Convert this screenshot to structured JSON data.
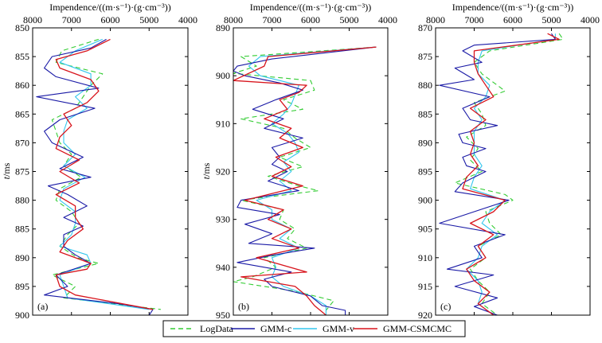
{
  "colors": {
    "LogData": "#33cc33",
    "GMM-c": "#1a1aa6",
    "GMM-v": "#33c6ee",
    "GMM-CSMCMC": "#d8141c"
  },
  "legend": {
    "items": [
      {
        "key": "LogData",
        "label": "LogData",
        "dash": true
      },
      {
        "key": "GMM-c",
        "label": "GMM-c",
        "dash": false
      },
      {
        "key": "GMM-v",
        "label": "GMM-v",
        "dash": false
      },
      {
        "key": "GMM-CSMCMC",
        "label": "GMM-CSMCMC",
        "dash": false
      }
    ]
  },
  "chart_data": [
    {
      "type": "line",
      "panel_label": "(a)",
      "title": "Impendence/((m·s⁻¹)·(g·cm⁻³))",
      "ylabel_italic": "t",
      "ylabel_rest": "/ms",
      "xlim": [
        8000,
        4000
      ],
      "ylim": [
        850,
        900
      ],
      "xticks": [
        8000,
        7000,
        6000,
        5000,
        4000
      ],
      "yticks": [
        850,
        855,
        860,
        865,
        870,
        875,
        880,
        885,
        890,
        895,
        900
      ],
      "x_axis_position": "top",
      "y_direction": "down",
      "series": [
        {
          "name": "LogData",
          "t": [
            852,
            854,
            856,
            858,
            860,
            862,
            864,
            866,
            868,
            870,
            872,
            874,
            876,
            878,
            880,
            882,
            884,
            886,
            888,
            890,
            891,
            893,
            895,
            897,
            899
          ],
          "values": [
            6300,
            7250,
            7400,
            6200,
            6500,
            6700,
            6900,
            7500,
            7400,
            7300,
            7000,
            7200,
            6750,
            7300,
            7400,
            7000,
            6800,
            7100,
            7300,
            6850,
            6300,
            7500,
            6900,
            7200,
            4700
          ]
        },
        {
          "name": "GMM-c",
          "t": [
            852,
            853.5,
            855,
            857,
            858.5,
            860.5,
            862,
            864,
            866,
            868,
            870,
            872.5,
            874.5,
            876,
            877.5,
            879,
            881,
            883,
            884.5,
            886,
            888,
            889.5,
            891,
            893,
            895,
            896.5,
            898,
            899,
            900
          ],
          "values": [
            6100,
            6500,
            7500,
            7700,
            7400,
            6300,
            7900,
            6400,
            7300,
            7700,
            7500,
            6700,
            7300,
            6500,
            7600,
            7100,
            6600,
            7200,
            6700,
            7200,
            7200,
            6900,
            6500,
            7400,
            7100,
            7700,
            5800,
            4900,
            5000
          ]
        },
        {
          "name": "GMM-v",
          "t": [
            852,
            854,
            856,
            858,
            860,
            862,
            864,
            866,
            868,
            870,
            872,
            874,
            876,
            878,
            880,
            882,
            884,
            886,
            888,
            889.5,
            891,
            893,
            895,
            897,
            899
          ],
          "values": [
            6200,
            6900,
            7300,
            6500,
            6500,
            6900,
            6600,
            7100,
            7200,
            7200,
            6900,
            7200,
            6650,
            7200,
            7300,
            6900,
            6900,
            7000,
            7300,
            6600,
            6500,
            7300,
            7200,
            7100,
            5000
          ]
        },
        {
          "name": "GMM-CSMCMC",
          "t": [
            852,
            854,
            855.5,
            857,
            859,
            861,
            863,
            865,
            867,
            869,
            871,
            873,
            875,
            877,
            879,
            881,
            883,
            885,
            887,
            889,
            891,
            892,
            893,
            895,
            896.5,
            899
          ],
          "values": [
            6000,
            6600,
            7400,
            7300,
            6500,
            6300,
            6600,
            7200,
            7000,
            7300,
            7400,
            6800,
            7300,
            6800,
            7400,
            6900,
            6900,
            6700,
            7100,
            7300,
            6500,
            6600,
            7400,
            7300,
            6900,
            4900
          ]
        }
      ]
    },
    {
      "type": "line",
      "panel_label": "(b)",
      "title": "Impendence/((m·s⁻¹)·(g·cm⁻³))",
      "ylabel_italic": "t",
      "ylabel_rest": "/ms",
      "xlim": [
        8000,
        4000
      ],
      "ylim": [
        890,
        950
      ],
      "xticks": [
        8000,
        7000,
        6000,
        5000,
        4000
      ],
      "yticks": [
        890,
        900,
        910,
        920,
        930,
        940,
        950
      ],
      "x_axis_position": "top",
      "y_direction": "down",
      "series": [
        {
          "name": "LogData",
          "t": [
            894,
            896,
            898,
            899.5,
            901,
            903,
            905,
            907,
            909,
            911,
            913,
            915,
            917,
            919,
            921,
            923,
            924,
            926,
            928,
            930,
            932,
            934,
            936,
            938,
            940,
            942,
            943,
            945,
            947,
            949
          ],
          "values": [
            4300,
            7800,
            7400,
            8000,
            6000,
            5900,
            6700,
            6200,
            7800,
            6700,
            6400,
            6000,
            6800,
            6200,
            7100,
            6300,
            5800,
            7800,
            6700,
            6800,
            6400,
            6600,
            6100,
            7200,
            6900,
            7500,
            8000,
            6400,
            5400,
            5600
          ]
        },
        {
          "name": "GMM-c",
          "t": [
            894,
            896.5,
            898,
            899,
            900,
            901.5,
            903,
            905,
            907,
            909,
            911,
            913,
            915,
            917,
            918.5,
            920,
            922,
            924,
            926,
            927.5,
            929,
            931,
            933,
            935,
            936,
            937.5,
            939,
            941,
            942.5,
            944,
            946,
            948,
            949,
            950
          ],
          "values": [
            4300,
            7000,
            7900,
            8000,
            7700,
            6800,
            6200,
            6900,
            7500,
            6700,
            7200,
            6200,
            7000,
            6800,
            7000,
            6600,
            7100,
            6300,
            7800,
            7900,
            6800,
            7700,
            7000,
            7600,
            5900,
            7000,
            7900,
            6500,
            7200,
            7000,
            6000,
            5700,
            5100,
            5100
          ]
        },
        {
          "name": "GMM-v",
          "t": [
            894,
            896,
            898,
            900,
            902,
            904,
            906,
            908,
            910,
            912,
            914,
            916,
            918,
            920,
            922,
            924,
            926,
            928,
            930,
            932,
            934,
            936,
            938,
            940,
            942,
            944,
            946,
            948,
            950
          ],
          "values": [
            4300,
            7300,
            7600,
            7300,
            6300,
            6400,
            6500,
            6700,
            7000,
            6600,
            6400,
            6300,
            6700,
            6500,
            6800,
            6500,
            7400,
            7000,
            7000,
            6500,
            6800,
            6300,
            7000,
            6900,
            7000,
            6700,
            6000,
            5600,
            5600
          ]
        },
        {
          "name": "GMM-CSMCMC",
          "t": [
            894,
            896,
            898,
            901,
            902,
            903.5,
            905,
            907,
            909,
            911,
            913,
            915,
            917,
            919,
            921,
            923,
            926,
            928,
            930,
            932,
            934,
            936,
            938,
            941,
            942,
            944,
            946,
            948,
            950
          ],
          "values": [
            4300,
            7100,
            7200,
            8000,
            6100,
            6300,
            6800,
            6600,
            7200,
            6500,
            6800,
            6200,
            6900,
            6500,
            7000,
            6200,
            7700,
            6700,
            7100,
            6500,
            7000,
            6300,
            7400,
            6100,
            7800,
            6400,
            6100,
            5900,
            5600
          ]
        }
      ]
    },
    {
      "type": "line",
      "panel_label": "(c)",
      "title": "Impendence/((m·s⁻¹)·(g·cm⁻³))",
      "ylabel_italic": "",
      "ylabel_rest": "",
      "xlim": [
        8000,
        4000
      ],
      "ylim": [
        870,
        920
      ],
      "xticks": [
        8000,
        7000,
        6000,
        5000,
        4000
      ],
      "yticks": [
        870,
        875,
        880,
        885,
        890,
        895,
        900,
        905,
        910,
        915,
        920
      ],
      "x_axis_position": "top",
      "y_direction": "down",
      "series": [
        {
          "name": "LogData",
          "t": [
            871,
            872,
            874,
            876,
            878,
            880,
            881,
            883,
            885,
            887,
            889,
            891,
            893,
            895,
            897,
            899,
            900,
            902,
            904,
            906,
            908,
            910,
            912,
            914,
            916,
            918,
            920
          ],
          "values": [
            4800,
            4700,
            6600,
            7000,
            6800,
            6400,
            6200,
            7000,
            6800,
            6700,
            7200,
            6900,
            7100,
            6800,
            7500,
            6200,
            6000,
            6700,
            6600,
            6300,
            6900,
            6700,
            7100,
            6900,
            6600,
            6800,
            6400
          ]
        },
        {
          "name": "GMM-c",
          "t": [
            871,
            872,
            873,
            874,
            876,
            877,
            879,
            880,
            882,
            884,
            886,
            887,
            888.5,
            890,
            891,
            892.5,
            894,
            895,
            897,
            898.5,
            900,
            902,
            904,
            906,
            908,
            910,
            912,
            913,
            915,
            917,
            918.5,
            920
          ],
          "values": [
            5000,
            4900,
            7000,
            7300,
            6800,
            7500,
            7000,
            7900,
            6600,
            7300,
            7100,
            6400,
            7400,
            7300,
            6700,
            7300,
            7200,
            6700,
            7300,
            7500,
            6100,
            7000,
            7900,
            6200,
            7000,
            6800,
            7700,
            6500,
            7500,
            6400,
            7000,
            6400
          ]
        },
        {
          "name": "GMM-v",
          "t": [
            871,
            872,
            874,
            876,
            878,
            880,
            882,
            884,
            886,
            888,
            890,
            892,
            894,
            896,
            898,
            900,
            902,
            904,
            906,
            908,
            910,
            912,
            914,
            916,
            918,
            920
          ],
          "values": [
            4900,
            4900,
            6800,
            6900,
            6900,
            6600,
            6700,
            7000,
            6800,
            7000,
            7000,
            7000,
            6800,
            7000,
            7100,
            6200,
            6600,
            6800,
            6400,
            6800,
            6900,
            7200,
            6900,
            6800,
            6900,
            6500
          ]
        },
        {
          "name": "GMM-CSMCMC",
          "t": [
            871,
            872,
            874,
            876,
            878,
            880,
            882,
            884,
            886,
            888,
            890,
            892,
            894,
            896,
            898,
            900,
            902,
            904,
            906,
            908,
            910,
            912,
            914,
            916,
            918,
            920
          ],
          "values": [
            5100,
            4800,
            7000,
            7000,
            6900,
            6700,
            6500,
            7100,
            6700,
            7100,
            7000,
            7100,
            6900,
            7200,
            7300,
            6200,
            6500,
            7100,
            6500,
            6900,
            6700,
            7200,
            7000,
            6600,
            6900,
            6500
          ]
        }
      ]
    }
  ]
}
